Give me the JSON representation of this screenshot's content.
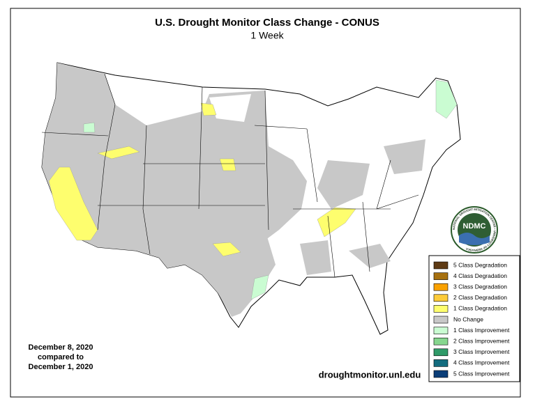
{
  "header": {
    "title": "U.S. Drought Monitor Class Change - CONUS",
    "subtitle": "1 Week"
  },
  "legend": {
    "items": [
      {
        "label": "5 Class Degradation",
        "color": "#5e3a14"
      },
      {
        "label": "4 Class Degradation",
        "color": "#a6700f"
      },
      {
        "label": "3 Class Degradation",
        "color": "#f9a100"
      },
      {
        "label": "2 Class Degradation",
        "color": "#fccb3a"
      },
      {
        "label": "1 Class Degradation",
        "color": "#fefe6e"
      },
      {
        "label": "No Change",
        "color": "#c8c8c8"
      },
      {
        "label": "1 Class Improvement",
        "color": "#cafcd2"
      },
      {
        "label": "2 Class Improvement",
        "color": "#86d68e"
      },
      {
        "label": "3 Class Improvement",
        "color": "#2f9a68"
      },
      {
        "label": "4 Class Improvement",
        "color": "#136c7e"
      },
      {
        "label": "5 Class Improvement",
        "color": "#0b3e78"
      }
    ]
  },
  "dates": [
    "December 8, 2020",
    "compared to",
    "December 1, 2020"
  ],
  "source": "droughtmonitor.unl.edu",
  "logo": {
    "text": "NDMC",
    "ring": "NATIONAL DROUGHT MITIGATION CENTER • UNIVERSITY OF NEBRASKA"
  }
}
